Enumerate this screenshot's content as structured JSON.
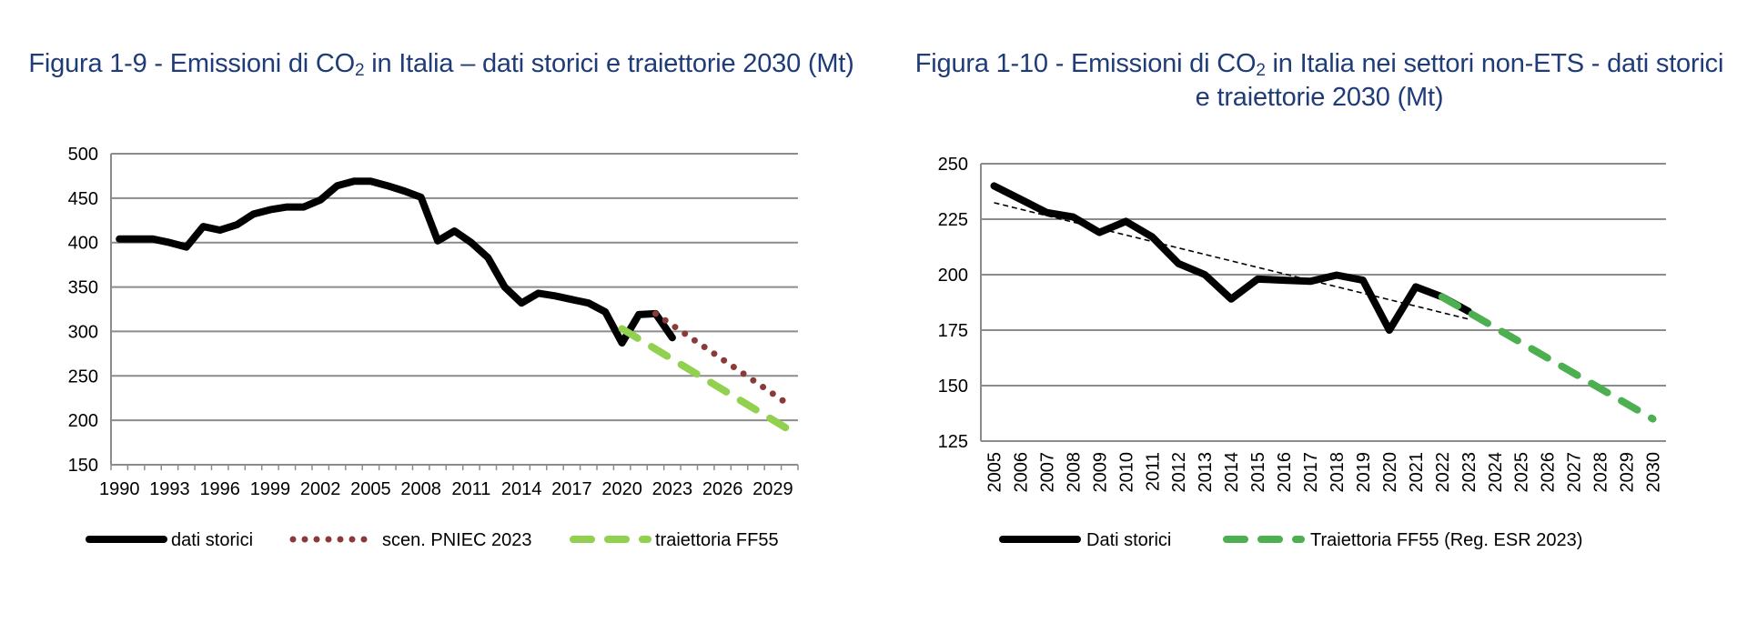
{
  "chart_data": [
    {
      "type": "line",
      "title_pre": "Figura 1-9 - Emissioni di CO",
      "title_sub": "2",
      "title_post": " in Italia – dati storici e traiettorie 2030 (Mt)",
      "xlabel": "",
      "ylabel": "",
      "ylim": [
        150,
        500
      ],
      "yticks": [
        150,
        200,
        250,
        300,
        350,
        400,
        450,
        500
      ],
      "x_start": 1990,
      "x_end": 2030,
      "xtick_labels": [
        "1990",
        "1993",
        "1996",
        "1999",
        "2002",
        "2005",
        "2008",
        "2011",
        "2014",
        "2017",
        "2020",
        "2023",
        "2026",
        "2029"
      ],
      "grid": true,
      "legend_position": "bottom",
      "series": [
        {
          "name": "dati storici",
          "style": "solid",
          "color": "#000000",
          "x": [
            1990,
            1991,
            1992,
            1993,
            1994,
            1995,
            1996,
            1997,
            1998,
            1999,
            2000,
            2001,
            2002,
            2003,
            2004,
            2005,
            2006,
            2007,
            2008,
            2009,
            2010,
            2011,
            2012,
            2013,
            2014,
            2015,
            2016,
            2017,
            2018,
            2019,
            2020,
            2021,
            2022,
            2023
          ],
          "values": [
            404,
            404,
            404,
            400,
            395,
            418,
            414,
            420,
            432,
            437,
            440,
            440,
            448,
            464,
            469,
            469,
            464,
            458,
            451,
            402,
            413,
            400,
            383,
            350,
            332,
            343,
            340,
            336,
            332,
            322,
            287,
            319,
            320,
            293
          ]
        },
        {
          "name": "scen. PNIEC 2023",
          "style": "dotted",
          "color": "#8b3a3a",
          "x": [
            2022,
            2030
          ],
          "values": [
            320,
            217
          ]
        },
        {
          "name": "traiettoria FF55",
          "style": "dashed",
          "color": "#92d050",
          "x": [
            2020,
            2030
          ],
          "values": [
            303,
            189
          ]
        }
      ]
    },
    {
      "type": "line",
      "title_pre": "Figura 1-10 - Emissioni di CO",
      "title_sub": "2",
      "title_post": " in Italia nei settori non-ETS - dati storici e traiettorie 2030 (Mt)",
      "xlabel": "",
      "ylabel": "",
      "ylim": [
        125,
        250
      ],
      "yticks": [
        125,
        150,
        175,
        200,
        225,
        250
      ],
      "x_start": 2005,
      "x_end": 2030,
      "xtick_labels": [
        "2005",
        "2006",
        "2007",
        "2008",
        "2009",
        "2010",
        "2011",
        "2012",
        "2013",
        "2014",
        "2015",
        "2016",
        "2017",
        "2018",
        "2019",
        "2020",
        "2021",
        "2022",
        "2023",
        "2024",
        "2025",
        "2026",
        "2027",
        "2028",
        "2029",
        "2030"
      ],
      "grid": true,
      "legend_position": "bottom",
      "series": [
        {
          "name": "Dati storici",
          "style": "solid",
          "color": "#000000",
          "x": [
            2005,
            2006,
            2007,
            2008,
            2009,
            2010,
            2011,
            2012,
            2013,
            2014,
            2015,
            2016,
            2017,
            2018,
            2019,
            2020,
            2021,
            2022,
            2023
          ],
          "values": [
            240,
            234,
            228,
            226,
            219,
            224,
            217,
            205,
            200,
            189,
            198,
            197.5,
            197,
            199.8,
            197.5,
            175,
            194.5,
            190,
            183.5
          ]
        },
        {
          "name": "Traiettoria FF55 (Reg. ESR 2023)",
          "style": "dashed",
          "color": "#4caf50",
          "x": [
            2022,
            2030
          ],
          "values": [
            190,
            135
          ]
        },
        {
          "name": "trend",
          "style": "thin-dashed",
          "color": "#000000",
          "in_legend": false,
          "x": [
            2005,
            2023
          ],
          "values": [
            232.4,
            180
          ]
        }
      ]
    }
  ]
}
